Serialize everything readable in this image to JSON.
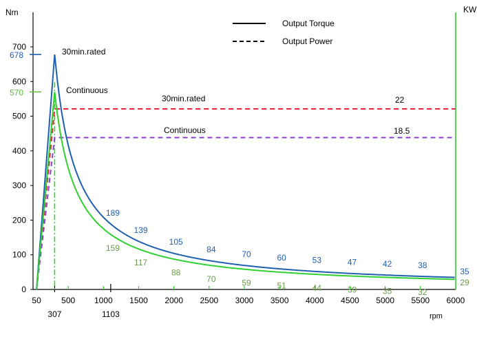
{
  "chart_data": {
    "type": "line",
    "title": "",
    "y_left_label": "Nm",
    "y_right_label": "KW",
    "x_label": "rpm",
    "x_range": [
      0,
      6000
    ],
    "y_range": [
      0,
      750
    ],
    "y_right_range": [
      0,
      28.5
    ],
    "grid": false,
    "legend": {
      "position": "top-center",
      "entries": [
        {
          "label": "Output Torque",
          "style": "solid"
        },
        {
          "label": "Output Power",
          "style": "dashed"
        }
      ]
    },
    "x_ticks": [
      "50",
      "500",
      "1000",
      "1500",
      "2000",
      "2500",
      "3000",
      "3500",
      "4000",
      "4500",
      "5000",
      "5500",
      "6000"
    ],
    "x_tick_values": [
      50,
      500,
      1000,
      1500,
      2000,
      2500,
      3000,
      3500,
      4000,
      4500,
      5000,
      5500,
      6000
    ],
    "x_extra_ticks": [
      {
        "value": 307,
        "label": "307",
        "color": "#000000"
      },
      {
        "value": 1103,
        "label": "1103",
        "color": "#000000"
      }
    ],
    "y_ticks": [
      "0",
      "100",
      "200",
      "300",
      "400",
      "500",
      "600",
      "700"
    ],
    "y_tick_values": [
      0,
      100,
      200,
      300,
      400,
      500,
      600,
      700
    ],
    "y_marked": [
      {
        "value": 678,
        "label": "678",
        "color": "#1f5fb0"
      },
      {
        "value": 570,
        "label": "570",
        "color": "#5cbf3a"
      }
    ],
    "series": [
      {
        "name": "30min.rated",
        "kind": "torque",
        "color": "#1f5fb0",
        "x": [
          50,
          307,
          1103,
          1500,
          2000,
          2500,
          3000,
          3500,
          4000,
          4500,
          5000,
          5500,
          6000
        ],
        "y": [
          0,
          678,
          189,
          139,
          105,
          84,
          70,
          60,
          53,
          47,
          42,
          38,
          35
        ],
        "point_labels": [
          "",
          "",
          "189",
          "139",
          "105",
          "84",
          "70",
          "60",
          "53",
          "47",
          "42",
          "38",
          "35"
        ]
      },
      {
        "name": "Continuous",
        "kind": "torque",
        "color": "#2fd02f",
        "x": [
          50,
          307,
          1103,
          1500,
          2000,
          2500,
          3000,
          3500,
          4000,
          4500,
          5000,
          5500,
          6000
        ],
        "y": [
          0,
          570,
          159,
          117,
          88,
          70,
          59,
          51,
          44,
          39,
          35,
          32,
          29
        ],
        "point_labels": [
          "",
          "",
          "159",
          "117",
          "88",
          "70",
          "59",
          "51",
          "44",
          "39",
          "35",
          "32",
          "29"
        ],
        "label_color": "#6a9a4a"
      },
      {
        "name": "30min.rated",
        "kind": "power",
        "color": "#e0283a",
        "x": [
          50,
          307,
          6000
        ],
        "y_kw": [
          0,
          22,
          22
        ],
        "value_label": "22"
      },
      {
        "name": "Continuous",
        "kind": "power",
        "color": "#8a3fd0",
        "x": [
          50,
          307,
          6000
        ],
        "y_kw": [
          0,
          18.5,
          18.5
        ],
        "value_label": "18.5"
      }
    ],
    "annotations": [
      {
        "text": "30min.rated",
        "near": "torque peak"
      },
      {
        "text": "Continuous",
        "near": "continuous torque peak"
      },
      {
        "text": "30min.rated",
        "near": "rated power line"
      },
      {
        "text": "Continuous",
        "near": "continuous power line"
      }
    ]
  }
}
